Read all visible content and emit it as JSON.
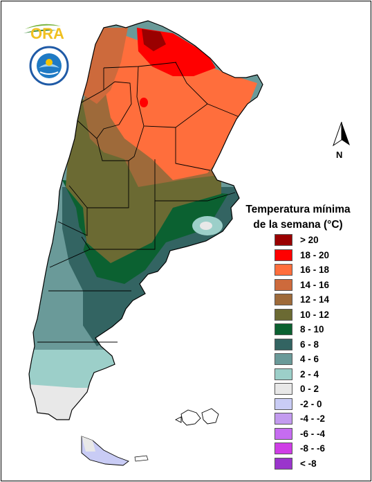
{
  "legend": {
    "title_line1": "Temperatura mínima",
    "title_line2": "de la semana (°C)",
    "items": [
      {
        "label": "> 20",
        "color": "#9a0000"
      },
      {
        "label": "18 - 20",
        "color": "#ff0000"
      },
      {
        "label": "16 - 18",
        "color": "#ff6e3c"
      },
      {
        "label": "14 - 16",
        "color": "#cd6a3c"
      },
      {
        "label": "12 - 14",
        "color": "#9e6a3a"
      },
      {
        "label": "10 - 12",
        "color": "#6b6a33"
      },
      {
        "label": "8 - 10",
        "color": "#0b6131"
      },
      {
        "label": "6 - 8",
        "color": "#336462"
      },
      {
        "label": "4 - 6",
        "color": "#6a9a99"
      },
      {
        "label": "2 - 4",
        "color": "#9ccfc9"
      },
      {
        "label": "0 - 2",
        "color": "#e8e8e8"
      },
      {
        "label": "-2 - 0",
        "color": "#c9ccf5"
      },
      {
        "label": "-4 - -2",
        "color": "#c39bef"
      },
      {
        "label": "-6 - -4",
        "color": "#c66cf1"
      },
      {
        "label": "-8 - -6",
        "color": "#cf3ee6"
      },
      {
        "label": "< -8",
        "color": "#9a35cc"
      }
    ]
  },
  "compass": {
    "label": "N"
  },
  "logos": {
    "ora_text": "ORA"
  }
}
